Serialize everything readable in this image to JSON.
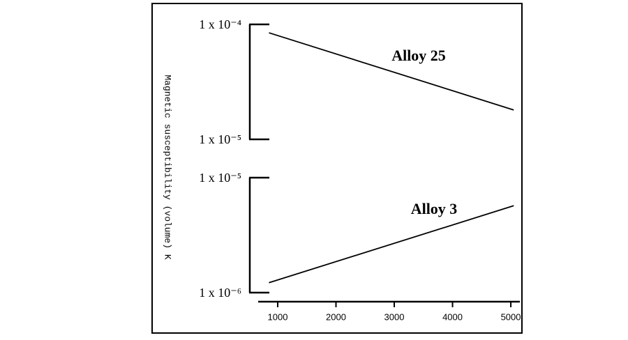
{
  "chart_data": [
    {
      "type": "line",
      "y_label": "Magnetic susceptibility (volume) K",
      "log_y": true,
      "xlim": [
        665,
        5155
      ],
      "ylim": [
        1e-05,
        0.0001
      ],
      "yticks": [
        {
          "value": 0.0001,
          "label": "1 x 10⁻⁴"
        },
        {
          "value": 1e-05,
          "label": "1 x 10⁻⁵"
        }
      ],
      "series": [
        {
          "name": "Alloy 25",
          "color": "#000000",
          "x": [
            850,
            5050
          ],
          "values": [
            8.45e-05,
            1.8e-05
          ]
        }
      ]
    },
    {
      "type": "line",
      "log_y": true,
      "xlim": [
        665,
        5155
      ],
      "ylim": [
        1e-06,
        1e-05
      ],
      "xticks": [
        1000,
        2000,
        3000,
        4000,
        5000
      ],
      "yticks": [
        {
          "value": 1e-05,
          "label": "1 x 10⁻⁵"
        },
        {
          "value": 1e-06,
          "label": "1 x 10⁻⁶"
        }
      ],
      "series": [
        {
          "name": "Alloy 3",
          "color": "#000000",
          "x": [
            850,
            5050
          ],
          "values": [
            1.22e-06,
            5.7e-06
          ]
        }
      ]
    }
  ]
}
